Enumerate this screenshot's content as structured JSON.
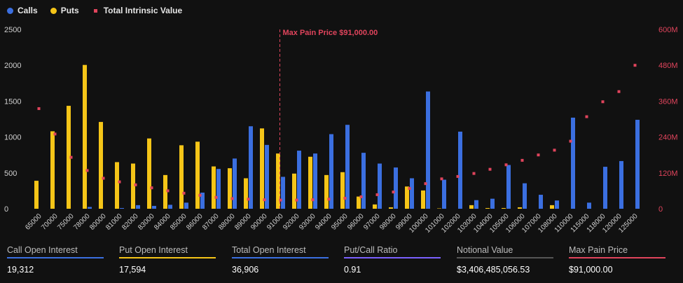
{
  "legend": {
    "calls": "Calls",
    "puts": "Puts",
    "intrinsic": "Total Intrinsic Value"
  },
  "colors": {
    "calls": "#3b6fe0",
    "puts": "#f5c518",
    "intrinsic": "#e0445c"
  },
  "chart_data": {
    "type": "bar",
    "categories": [
      "65000",
      "70000",
      "75000",
      "78000",
      "80000",
      "81000",
      "82000",
      "83000",
      "84000",
      "85000",
      "86000",
      "87000",
      "88000",
      "89000",
      "90000",
      "91000",
      "92000",
      "93000",
      "94000",
      "95000",
      "96000",
      "97000",
      "98000",
      "99000",
      "100000",
      "101000",
      "102000",
      "103000",
      "104000",
      "105000",
      "106000",
      "107000",
      "108000",
      "110000",
      "115000",
      "118000",
      "120000",
      "125000"
    ],
    "series": [
      {
        "name": "Calls",
        "axis": "left",
        "values": [
          0,
          0,
          0,
          25,
          0,
          10,
          50,
          40,
          55,
          85,
          225,
          555,
          700,
          1150,
          890,
          445,
          810,
          770,
          1040,
          1170,
          780,
          630,
          575,
          425,
          1635,
          405,
          1075,
          120,
          140,
          610,
          355,
          195,
          115,
          1270,
          85,
          585,
          665,
          1240
        ]
      },
      {
        "name": "Puts",
        "axis": "left",
        "values": [
          390,
          1080,
          1435,
          2005,
          1210,
          650,
          630,
          980,
          470,
          885,
          935,
          590,
          565,
          425,
          1120,
          770,
          490,
          725,
          470,
          510,
          170,
          60,
          20,
          310,
          255,
          5,
          0,
          50,
          10,
          10,
          20,
          0,
          50,
          0,
          0,
          0,
          0,
          0
        ]
      },
      {
        "name": "Total Intrinsic Value",
        "axis": "right",
        "type": "scatter",
        "values": [
          335,
          250,
          172,
          128,
          102,
          90,
          80,
          70,
          60,
          52,
          45,
          38,
          34,
          32,
          30,
          29,
          29,
          30,
          32,
          35,
          40,
          47,
          56,
          68,
          84,
          100,
          108,
          118,
          132,
          147,
          162,
          180,
          196,
          226,
          308,
          358,
          392,
          480
        ]
      }
    ],
    "y_left": {
      "ylim": [
        0,
        2500
      ],
      "ticks": [
        "0",
        "500",
        "1000",
        "1500",
        "2000",
        "2500"
      ]
    },
    "y_right": {
      "ylim": [
        0,
        600
      ],
      "ticks": [
        "0",
        "120M",
        "240M",
        "360M",
        "480M",
        "600M"
      ]
    },
    "max_pain": {
      "category": "91000",
      "label": "Max Pain Price $91,000.00"
    },
    "legend_position": "top-left",
    "grid": false
  },
  "stats": [
    {
      "label": "Call Open Interest",
      "value": "19,312",
      "color": "#3b6fe0"
    },
    {
      "label": "Put Open Interest",
      "value": "17,594",
      "color": "#f5c518"
    },
    {
      "label": "Total Open Interest",
      "value": "36,906",
      "color": "#3b6fe0"
    },
    {
      "label": "Put/Call Ratio",
      "value": "0.91",
      "color": "#7b61ff"
    },
    {
      "label": "Notional Value",
      "value": "$3,406,485,056.53",
      "color": "#555555"
    },
    {
      "label": "Max Pain Price",
      "value": "$91,000.00",
      "color": "#e0445c"
    }
  ]
}
